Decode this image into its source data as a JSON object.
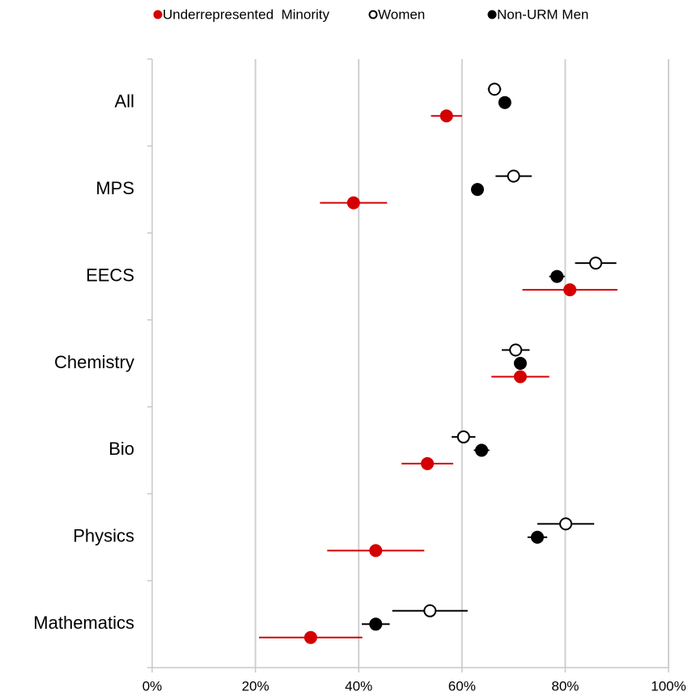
{
  "chart_data": {
    "type": "dot_errorbar",
    "categories": [
      "All",
      "MPS",
      "EECS",
      "Chemistry",
      "Bio",
      "Physics",
      "Mathematics"
    ],
    "series": [
      {
        "name": "Underrepresented  Minority",
        "color": "#d40000",
        "filled": true,
        "values": [
          57.0,
          39.0,
          80.9,
          71.3,
          53.3,
          43.3,
          30.7
        ],
        "errors": [
          3.0,
          6.5,
          9.2,
          5.6,
          5.0,
          9.4,
          10.0
        ]
      },
      {
        "name": "Women",
        "color": "#000000",
        "filled": false,
        "values": [
          66.3,
          70.0,
          85.9,
          70.4,
          60.3,
          80.1,
          53.8
        ],
        "errors": [
          1.3,
          3.5,
          4.0,
          2.7,
          2.3,
          5.5,
          7.3
        ]
      },
      {
        "name": "Non-URM Men",
        "color": "#000000",
        "filled": true,
        "values": [
          68.3,
          63.0,
          78.4,
          71.3,
          63.8,
          74.6,
          43.3
        ],
        "errors": [
          0.5,
          1.0,
          1.5,
          1.2,
          1.5,
          1.9,
          2.7
        ]
      }
    ],
    "xlim": [
      0,
      100
    ],
    "xticks": [
      {
        "value": 0,
        "label": "0%"
      },
      {
        "value": 20,
        "label": "20%"
      },
      {
        "value": 40,
        "label": "40%"
      },
      {
        "value": 60,
        "label": "60%"
      },
      {
        "value": 80,
        "label": "80%"
      },
      {
        "value": 100,
        "label": "100%"
      }
    ],
    "grid": true,
    "legend": "top"
  }
}
